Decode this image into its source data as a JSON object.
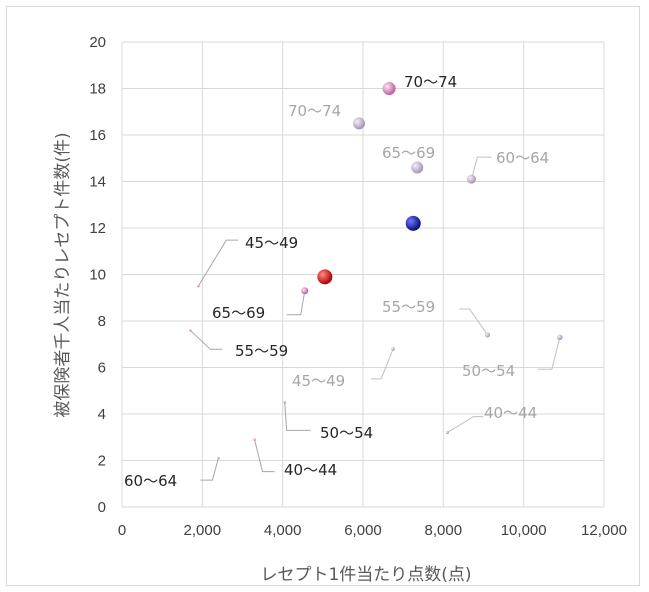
{
  "chart_data": {
    "type": "scatter",
    "title": "",
    "xlabel": "レセプト1件当たり点数(点)",
    "ylabel": "被保険者千人当たりレセプト件数(件)",
    "xlim": [
      0,
      12000
    ],
    "ylim": [
      0,
      20
    ],
    "x_ticks": [
      "0",
      "2,000",
      "4,000",
      "6,000",
      "8,000",
      "10,000",
      "12,000"
    ],
    "y_ticks": [
      "0",
      "2",
      "4",
      "6",
      "8",
      "10",
      "12",
      "14",
      "16",
      "18",
      "20"
    ],
    "grid": true,
    "series": [
      {
        "color": "#b8a8cc",
        "label_color": "#a6a6a6",
        "points": [
          {
            "label": "40〜44",
            "x": 8100,
            "y": 3.2
          },
          {
            "label": "45〜49",
            "x": 6750,
            "y": 6.8
          },
          {
            "label": "50〜54",
            "x": 10900,
            "y": 7.3
          },
          {
            "label": "55〜59",
            "x": 9100,
            "y": 7.4
          },
          {
            "label": "60〜64",
            "x": 8700,
            "y": 14.1
          },
          {
            "label": "65〜69",
            "x": 7350,
            "y": 14.6
          },
          {
            "label": "70〜74",
            "x": 5900,
            "y": 16.5
          }
        ]
      },
      {
        "color": "#d580b8",
        "label_color": "#262626",
        "points": [
          {
            "label": "40〜44",
            "x": 3300,
            "y": 2.9
          },
          {
            "label": "45〜49",
            "x": 1900,
            "y": 9.5
          },
          {
            "label": "50〜54",
            "x": 4050,
            "y": 4.5
          },
          {
            "label": "55〜59",
            "x": 1700,
            "y": 7.6
          },
          {
            "label": "60〜64",
            "x": 2400,
            "y": 2.1
          },
          {
            "label": "65〜69",
            "x": 4550,
            "y": 9.3
          },
          {
            "label": "70〜74",
            "x": 6650,
            "y": 18.0
          }
        ]
      },
      {
        "color": "#1a1aa6",
        "points": [
          {
            "x": 7250,
            "y": 12.2
          }
        ]
      },
      {
        "color": "#e01010",
        "points": [
          {
            "x": 5050,
            "y": 9.9
          }
        ]
      }
    ]
  }
}
